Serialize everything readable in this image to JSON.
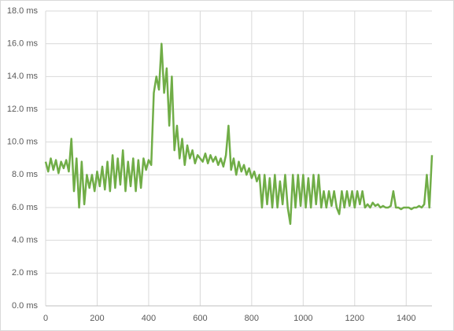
{
  "chart_data": {
    "type": "line",
    "x": [
      0,
      10,
      20,
      30,
      40,
      50,
      60,
      70,
      80,
      90,
      100,
      110,
      120,
      130,
      140,
      150,
      160,
      170,
      180,
      190,
      200,
      210,
      220,
      230,
      240,
      250,
      260,
      270,
      280,
      290,
      300,
      310,
      320,
      330,
      340,
      350,
      360,
      370,
      380,
      390,
      400,
      410,
      420,
      430,
      440,
      450,
      460,
      470,
      480,
      490,
      500,
      510,
      520,
      530,
      540,
      550,
      560,
      570,
      580,
      590,
      600,
      610,
      620,
      630,
      640,
      650,
      660,
      670,
      680,
      690,
      700,
      710,
      720,
      730,
      740,
      750,
      760,
      770,
      780,
      790,
      800,
      810,
      820,
      830,
      840,
      850,
      860,
      870,
      880,
      890,
      900,
      910,
      920,
      930,
      940,
      950,
      960,
      970,
      980,
      990,
      1000,
      1010,
      1020,
      1030,
      1040,
      1050,
      1060,
      1070,
      1080,
      1090,
      1100,
      1110,
      1120,
      1130,
      1140,
      1150,
      1160,
      1170,
      1180,
      1190,
      1200,
      1210,
      1220,
      1230,
      1240,
      1250,
      1260,
      1270,
      1280,
      1290,
      1300,
      1310,
      1320,
      1330,
      1340,
      1350,
      1360,
      1370,
      1380,
      1390,
      1400,
      1410,
      1420,
      1430,
      1440,
      1450,
      1460,
      1470,
      1480,
      1490,
      1500
    ],
    "series": [
      {
        "color": "#70ad47",
        "values": [
          8.8,
          8.2,
          9.0,
          8.3,
          8.9,
          8.1,
          8.8,
          8.4,
          8.9,
          8.2,
          10.2,
          7.0,
          9.0,
          6.0,
          8.8,
          6.2,
          8.0,
          7.2,
          8.0,
          7.0,
          8.2,
          7.3,
          8.5,
          7.1,
          8.8,
          7.0,
          9.2,
          7.2,
          9.0,
          7.4,
          9.5,
          7.0,
          8.8,
          7.3,
          9.0,
          7.0,
          8.9,
          7.2,
          9.0,
          8.3,
          8.9,
          8.6,
          13.0,
          14.0,
          13.2,
          16.0,
          13.0,
          14.5,
          11.0,
          14.0,
          9.5,
          11.0,
          9.0,
          10.2,
          8.6,
          9.8,
          9.0,
          9.5,
          8.7,
          9.2,
          9.0,
          8.8,
          9.3,
          8.7,
          9.2,
          8.8,
          9.1,
          8.6,
          9.0,
          8.5,
          9.2,
          11.0,
          8.3,
          9.0,
          8.0,
          8.8,
          8.2,
          8.6,
          8.0,
          8.4,
          7.8,
          8.2,
          7.6,
          8.0,
          6.0,
          8.0,
          6.2,
          7.8,
          6.0,
          8.0,
          6.0,
          7.6,
          6.2,
          8.0,
          6.0,
          5.0,
          8.0,
          6.0,
          8.0,
          6.1,
          8.0,
          6.0,
          7.8,
          6.0,
          8.0,
          6.2,
          8.0,
          6.0,
          7.0,
          6.0,
          7.0,
          6.1,
          7.0,
          6.0,
          5.6,
          7.0,
          6.0,
          7.0,
          6.1,
          7.0,
          6.0,
          7.0,
          6.2,
          7.0,
          6.0,
          6.2,
          6.0,
          6.3,
          6.1,
          6.2,
          6.0,
          6.1,
          6.0,
          6.0,
          6.1,
          7.0,
          6.0,
          6.0,
          5.9,
          6.0,
          6.0,
          6.0,
          5.9,
          6.0,
          6.0,
          6.1,
          6.0,
          6.2,
          8.0,
          6.0,
          9.2
        ]
      }
    ],
    "xlim": [
      0,
      1500
    ],
    "xticks": [
      0,
      200,
      400,
      600,
      800,
      1000,
      1200,
      1400
    ],
    "ylim": [
      0,
      18
    ],
    "yticks": [
      {
        "value": 0,
        "label": "0.0 ms"
      },
      {
        "value": 2,
        "label": "2.0 ms"
      },
      {
        "value": 4,
        "label": "4.0 ms"
      },
      {
        "value": 6,
        "label": "6.0 ms"
      },
      {
        "value": 8,
        "label": "8.0 ms"
      },
      {
        "value": 10,
        "label": "10.0 ms"
      },
      {
        "value": 12,
        "label": "12.0 ms"
      },
      {
        "value": 14,
        "label": "14.0 ms"
      },
      {
        "value": 16,
        "label": "16.0 ms"
      },
      {
        "value": 18,
        "label": "18.0 ms"
      }
    ],
    "grid": true
  }
}
